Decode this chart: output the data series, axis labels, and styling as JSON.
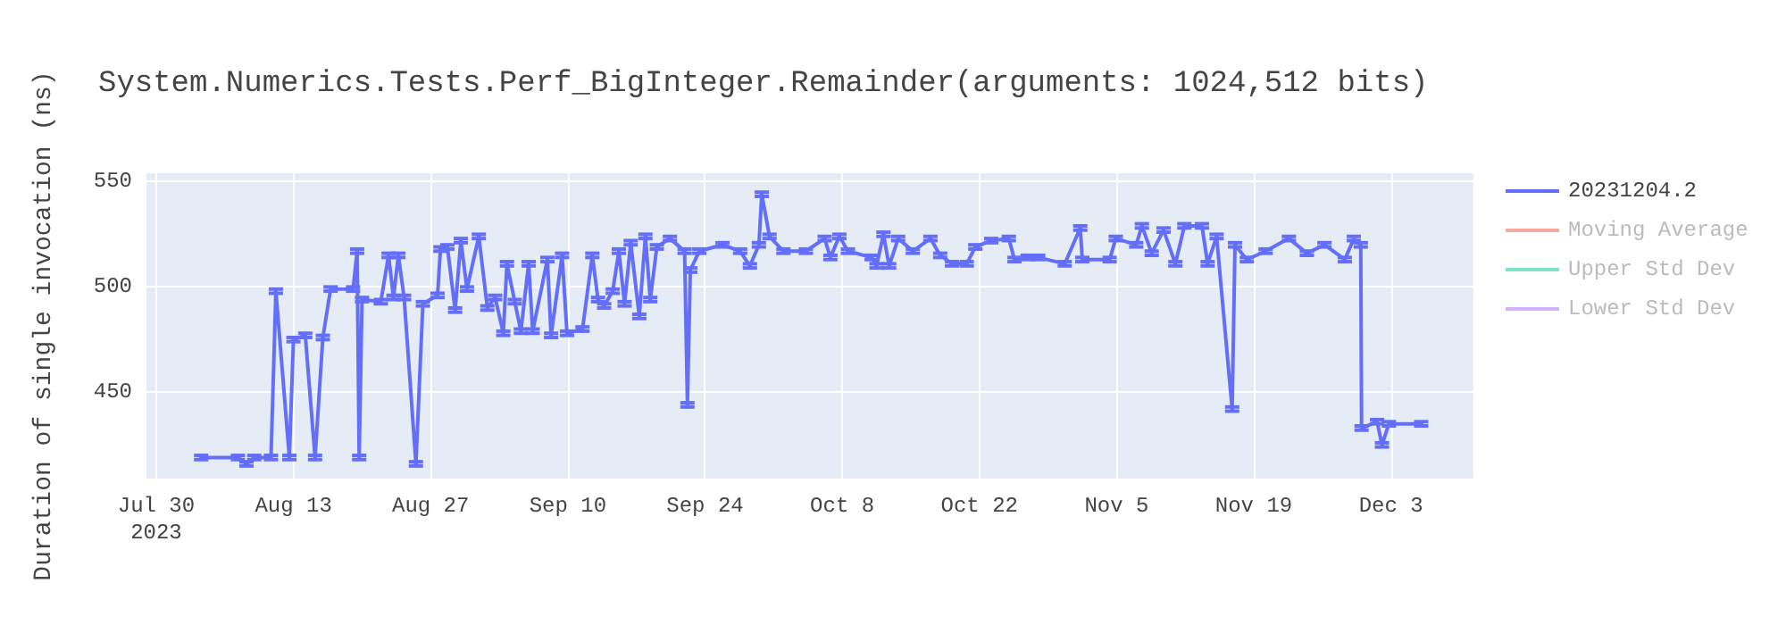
{
  "chart_data": {
    "type": "line",
    "title": "System.Numerics.Tests.Perf_BigInteger.Remainder(arguments: 1024,512 bits)",
    "ylabel": "Duration of single invocation (ns)",
    "x": [
      "2023-08-03T14:00",
      "2023-08-07T08:00",
      "2023-08-08T05:00",
      "2023-08-09",
      "2023-08-10T17:00",
      "2023-08-11T05:00",
      "2023-08-12T14:00",
      "2023-08-13",
      "2023-08-14T05:00",
      "2023-08-15T05:00",
      "2023-08-16",
      "2023-08-16T19:00",
      "2023-08-19T02:00",
      "2023-08-19T12:00",
      "2023-08-19T17:00",
      "2023-08-20",
      "2023-08-21T22:00",
      "2023-08-22T17:00",
      "2023-08-23T05:00",
      "2023-08-23T17:00",
      "2023-08-24T07:00",
      "2023-08-25T12:00",
      "2023-08-26T05:00",
      "2023-08-27T17:00",
      "2023-08-28",
      "2023-08-28T17:00",
      "2023-08-29T12:00",
      "2023-08-30T02:00",
      "2023-08-30T17:00",
      "2023-08-31T22:00",
      "2023-09-01T19:00",
      "2023-09-02T14:00",
      "2023-09-03T10:00",
      "2023-09-03T19:00",
      "2023-09-04T14:00",
      "2023-09-05T05:00",
      "2023-09-06",
      "2023-09-06T10:00",
      "2023-09-07T22:00",
      "2023-09-08T07:00",
      "2023-09-09T10:00",
      "2023-09-09T22:00",
      "2023-09-11T12:00",
      "2023-09-12T12:00",
      "2023-09-13T02:00",
      "2023-09-13T17:00",
      "2023-09-14T14:00",
      "2023-09-15T05:00",
      "2023-09-15T19:00",
      "2023-09-16T10:00",
      "2023-09-17T07:00",
      "2023-09-17T22:00",
      "2023-09-18T10:00",
      "2023-09-19T02:00",
      "2023-09-20T10:00",
      "2023-09-21T22:00",
      "2023-09-22T05:00",
      "2023-09-22T12:00",
      "2023-09-23T10:00",
      "2023-09-25T19:00",
      "2023-09-27T14:00",
      "2023-09-28T14:00",
      "2023-09-29T12:00",
      "2023-09-29T19:00",
      "2023-09-30T14:00",
      "2023-10-02",
      "2023-10-04T07:00",
      "2023-10-06T05:00",
      "2023-10-06T19:00",
      "2023-10-07T17:00",
      "2023-10-08T14:00",
      "2023-10-11",
      "2023-10-11T12:00",
      "2023-10-12T05:00",
      "2023-10-12T19:00",
      "2023-10-13T17:00",
      "2023-10-15T05:00",
      "2023-10-17",
      "2023-10-18",
      "2023-10-19T05:00",
      "2023-10-20T17:00",
      "2023-10-21T14:00",
      "2023-10-23T05:00",
      "2023-10-25",
      "2023-10-25T14:00",
      "2023-10-26T22:00",
      "2023-10-28",
      "2023-10-30T17:00",
      "2023-11-01T07:00",
      "2023-11-01T12:00",
      "2023-11-04T07:00",
      "2023-11-04T22:00",
      "2023-11-07",
      "2023-11-07T14:00",
      "2023-11-08T14:00",
      "2023-11-09T19:00",
      "2023-11-11",
      "2023-11-11T22:00",
      "2023-11-13T17:00",
      "2023-11-14T07:00",
      "2023-11-15T05:00",
      "2023-11-16T19:00",
      "2023-11-17T02:00",
      "2023-11-18T07:00",
      "2023-11-20T05:00",
      "2023-11-22T14:00",
      "2023-11-24T10:00",
      "2023-11-26T05:00",
      "2023-11-28T07:00",
      "2023-11-29T05:00",
      "2023-11-29T22:00",
      "2023-11-30",
      "2023-12-01T14:00",
      "2023-12-02T02:00",
      "2023-12-02T19:00",
      "2023-12-06T02:00"
    ],
    "series": [
      {
        "name": "20231204.2",
        "color": "#636efa",
        "values": [
          419,
          419,
          416,
          419,
          419,
          498,
          419,
          475,
          477,
          419,
          476,
          499,
          499,
          517,
          419,
          494,
          493,
          515,
          495,
          515,
          495,
          416,
          492,
          496,
          518,
          519,
          489,
          522,
          499,
          524,
          490,
          495,
          478,
          511,
          493,
          479,
          511,
          479,
          513,
          477,
          515,
          478,
          480,
          515,
          494,
          491,
          498,
          517,
          492,
          521,
          486,
          524,
          494,
          519,
          523,
          517,
          444,
          508,
          517,
          520,
          517,
          510,
          520,
          544,
          524,
          517,
          517,
          523,
          514,
          524,
          517,
          514,
          510,
          525,
          510,
          523,
          517,
          523,
          515,
          511,
          511,
          519,
          522,
          523,
          513,
          514,
          514,
          511,
          528,
          513,
          513,
          523,
          520,
          529,
          516,
          527,
          511,
          529,
          529,
          511,
          524,
          442,
          520,
          513,
          517,
          523,
          516,
          520,
          513,
          523,
          520,
          433,
          436,
          425,
          435,
          435
        ],
        "errors": [
          1,
          1,
          1,
          1,
          1,
          1,
          1,
          1,
          1,
          1,
          1,
          1,
          1,
          1,
          1,
          1,
          1,
          1,
          1,
          1,
          1,
          1,
          1,
          1,
          1,
          1,
          1,
          1,
          1,
          1,
          1,
          1,
          1,
          1,
          1,
          1,
          1,
          1,
          1,
          1,
          1,
          1,
          1,
          1,
          1,
          1,
          1,
          1,
          1,
          1,
          1,
          1,
          1,
          1,
          1,
          1,
          1,
          1,
          1,
          1,
          1,
          1,
          1,
          1,
          1,
          1,
          1,
          1,
          1,
          1,
          1,
          1,
          1,
          1,
          1,
          1,
          1,
          1,
          1,
          1,
          1,
          1,
          1,
          1,
          1,
          1,
          1,
          1,
          1,
          1,
          1,
          1,
          1,
          1,
          1,
          1,
          1,
          1,
          1,
          1,
          1,
          1,
          1,
          1,
          1,
          1,
          1,
          1,
          1,
          1,
          1,
          1,
          1,
          1,
          1,
          1
        ]
      },
      {
        "name": "Moving Average",
        "color": "#ef553b",
        "values": [
          null,
          null,
          null,
          null,
          null,
          null,
          null,
          null,
          null,
          null,
          null,
          null,
          null,
          null,
          null,
          null,
          null,
          null,
          null,
          null,
          null,
          null,
          null,
          null,
          null,
          null,
          null,
          null,
          null,
          null,
          null,
          null,
          null,
          null,
          null,
          null,
          null,
          null,
          null,
          null,
          null,
          null,
          null,
          null,
          null,
          null,
          null,
          null,
          null,
          null,
          null,
          null,
          null,
          null,
          null,
          null,
          null,
          null,
          null,
          null,
          null,
          null,
          null,
          null,
          null,
          null,
          null,
          null,
          null,
          null,
          null,
          null,
          null,
          null,
          null,
          null,
          null,
          null,
          null,
          null,
          null,
          null,
          null,
          null,
          null,
          null,
          null,
          null,
          null,
          null,
          null,
          null,
          null,
          null,
          null,
          null,
          null,
          null,
          null,
          null,
          null,
          null,
          null,
          null,
          null,
          null,
          null,
          null,
          null,
          null,
          null,
          null,
          null,
          null,
          null,
          null
        ]
      },
      {
        "name": "Upper Std Dev",
        "color": "#00cc96",
        "values": [
          null,
          null,
          null,
          null,
          null,
          null,
          null,
          null,
          null,
          null,
          null,
          null,
          null,
          null,
          null,
          null,
          null,
          null,
          null,
          null,
          null,
          null,
          null,
          null,
          null,
          null,
          null,
          null,
          null,
          null,
          null,
          null,
          null,
          null,
          null,
          null,
          null,
          null,
          null,
          null,
          null,
          null,
          null,
          null,
          null,
          null,
          null,
          null,
          null,
          null,
          null,
          null,
          null,
          null,
          null,
          null,
          null,
          null,
          null,
          null,
          null,
          null,
          null,
          null,
          null,
          null,
          null,
          null,
          null,
          null,
          null,
          null,
          null,
          null,
          null,
          null,
          null,
          null,
          null,
          null,
          null,
          null,
          null,
          null,
          null,
          null,
          null,
          null,
          null,
          null,
          null,
          null,
          null,
          null,
          null,
          null,
          null,
          null,
          null,
          null,
          null,
          null,
          null,
          null,
          null,
          null,
          null,
          null,
          null,
          null,
          null,
          null,
          null,
          null,
          null,
          null
        ]
      },
      {
        "name": "Lower Std Dev",
        "color": "#ab63fa",
        "values": [
          null,
          null,
          null,
          null,
          null,
          null,
          null,
          null,
          null,
          null,
          null,
          null,
          null,
          null,
          null,
          null,
          null,
          null,
          null,
          null,
          null,
          null,
          null,
          null,
          null,
          null,
          null,
          null,
          null,
          null,
          null,
          null,
          null,
          null,
          null,
          null,
          null,
          null,
          null,
          null,
          null,
          null,
          null,
          null,
          null,
          null,
          null,
          null,
          null,
          null,
          null,
          null,
          null,
          null,
          null,
          null,
          null,
          null,
          null,
          null,
          null,
          null,
          null,
          null,
          null,
          null,
          null,
          null,
          null,
          null,
          null,
          null,
          null,
          null,
          null,
          null,
          null,
          null,
          null,
          null,
          null,
          null,
          null,
          null,
          null,
          null,
          null,
          null,
          null,
          null,
          null,
          null,
          null,
          null,
          null,
          null,
          null,
          null,
          null,
          null,
          null,
          null,
          null,
          null,
          null,
          null,
          null,
          null,
          null,
          null,
          null,
          null,
          null,
          null,
          null,
          null
        ]
      }
    ],
    "xlim": [
      "2023-07-29",
      "2023-12-11T10:00"
    ],
    "xticks": [
      {
        "value": "2023-07-30",
        "label": "Jul 30\n2023"
      },
      {
        "value": "2023-08-13",
        "label": "Aug 13"
      },
      {
        "value": "2023-08-27",
        "label": "Aug 27"
      },
      {
        "value": "2023-09-10",
        "label": "Sep 10"
      },
      {
        "value": "2023-09-24",
        "label": "Sep 24"
      },
      {
        "value": "2023-10-08",
        "label": "Oct 8"
      },
      {
        "value": "2023-10-22",
        "label": "Oct 22"
      },
      {
        "value": "2023-11-05",
        "label": "Nov 5"
      },
      {
        "value": "2023-11-19",
        "label": "Nov 19"
      },
      {
        "value": "2023-12-03",
        "label": "Dec 3"
      }
    ],
    "ylim": [
      409,
      554
    ],
    "yticks": [
      450,
      500,
      550
    ],
    "grid": true,
    "legend": "right",
    "marker": "none",
    "line_style": "solid"
  }
}
